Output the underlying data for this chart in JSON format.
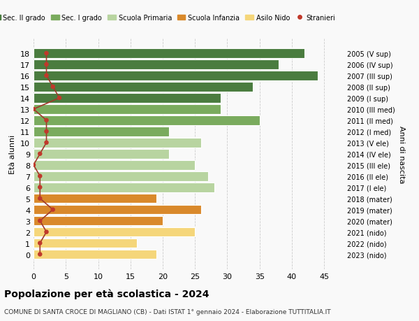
{
  "ages": [
    18,
    17,
    16,
    15,
    14,
    13,
    12,
    11,
    10,
    9,
    8,
    7,
    6,
    5,
    4,
    3,
    2,
    1,
    0
  ],
  "bar_values": [
    42,
    38,
    44,
    34,
    29,
    29,
    35,
    21,
    26,
    21,
    25,
    27,
    28,
    19,
    26,
    20,
    25,
    16,
    19
  ],
  "bar_colors": [
    "#4a7c3f",
    "#4a7c3f",
    "#4a7c3f",
    "#4a7c3f",
    "#4a7c3f",
    "#7aab5e",
    "#7aab5e",
    "#7aab5e",
    "#b8d4a0",
    "#b8d4a0",
    "#b8d4a0",
    "#b8d4a0",
    "#b8d4a0",
    "#d9892b",
    "#d9892b",
    "#d9892b",
    "#f5d67a",
    "#f5d67a",
    "#f5d67a"
  ],
  "stranieri_values": [
    2,
    2,
    2,
    3,
    4,
    0,
    2,
    2,
    2,
    1,
    0,
    1,
    1,
    1,
    3,
    1,
    2,
    1,
    1
  ],
  "right_labels": [
    "2005 (V sup)",
    "2006 (IV sup)",
    "2007 (III sup)",
    "2008 (II sup)",
    "2009 (I sup)",
    "2010 (III med)",
    "2011 (II med)",
    "2012 (I med)",
    "2013 (V ele)",
    "2014 (IV ele)",
    "2015 (III ele)",
    "2016 (II ele)",
    "2017 (I ele)",
    "2018 (mater)",
    "2019 (mater)",
    "2020 (mater)",
    "2021 (nido)",
    "2022 (nido)",
    "2023 (nido)"
  ],
  "legend_labels": [
    "Sec. II grado",
    "Sec. I grado",
    "Scuola Primaria",
    "Scuola Infanzia",
    "Asilo Nido",
    "Stranieri"
  ],
  "legend_colors": [
    "#4a7c3f",
    "#7aab5e",
    "#b8d4a0",
    "#d9892b",
    "#f5d67a",
    "#c0392b"
  ],
  "xlabel": "",
  "ylabel": "Età alunni",
  "right_ylabel": "Anni di nascita",
  "title": "Popolazione per età scolastica - 2024",
  "subtitle": "COMUNE DI SANTA CROCE DI MAGLIANO (CB) - Dati ISTAT 1° gennaio 2024 - Elaborazione TUTTITALIA.IT",
  "xlim": [
    0,
    48
  ],
  "xticks": [
    0,
    5,
    10,
    15,
    20,
    25,
    30,
    35,
    40,
    45
  ],
  "background_color": "#f9f9f9",
  "grid_color": "#cccccc",
  "stranieri_color": "#c0392b",
  "stranieri_line_color": "#a0392b"
}
